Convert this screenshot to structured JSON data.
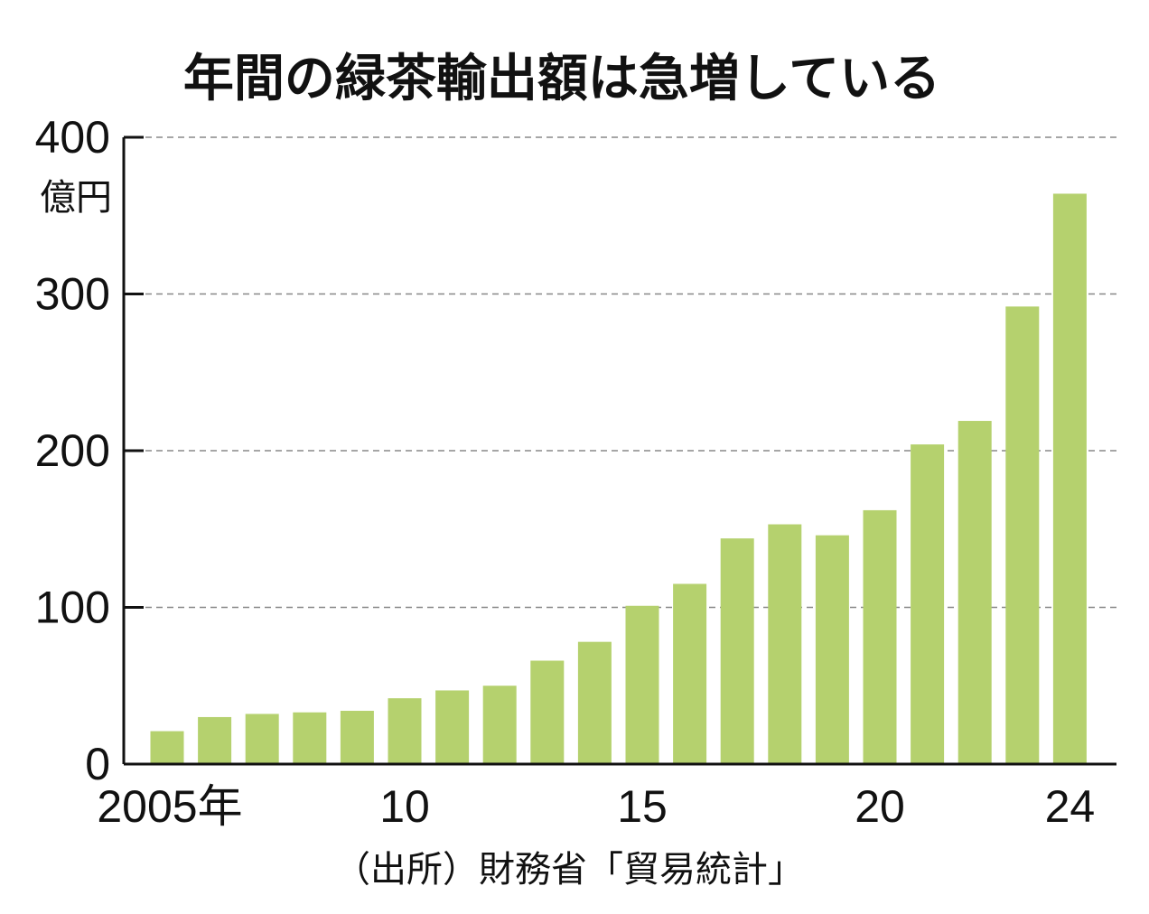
{
  "chart_data": {
    "type": "bar",
    "title": "年間の緑茶輸出額は急増している",
    "unit_label": "億円",
    "x_tick_labels": [
      "2005年",
      "10",
      "15",
      "20",
      "24"
    ],
    "y_tick_labels": [
      "0",
      "100",
      "200",
      "300",
      "400"
    ],
    "categories": [
      "2005",
      "2006",
      "2007",
      "2008",
      "2009",
      "2010",
      "2011",
      "2012",
      "2013",
      "2014",
      "2015",
      "2016",
      "2017",
      "2018",
      "2019",
      "2020",
      "2021",
      "2022",
      "2023",
      "2024"
    ],
    "values": [
      21,
      30,
      32,
      33,
      34,
      42,
      47,
      50,
      66,
      78,
      101,
      115,
      144,
      153,
      146,
      162,
      204,
      219,
      292,
      364
    ],
    "ylim": [
      0,
      400
    ],
    "grid": true,
    "bar_color": "#b5d16e",
    "source": "（出所）財務省「貿易統計」"
  }
}
